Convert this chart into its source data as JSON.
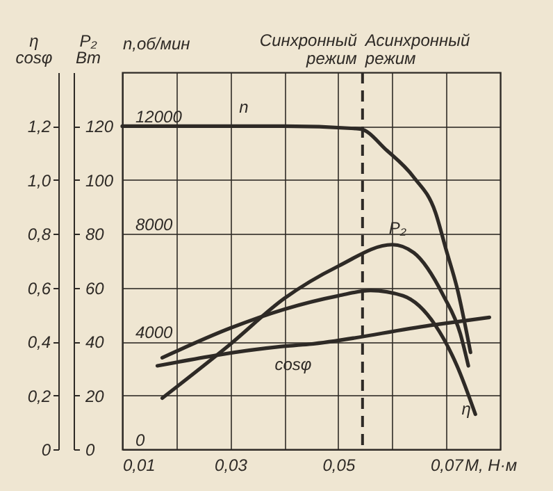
{
  "chart_data": {
    "type": "line",
    "xlabel": "M, Н·м",
    "ylabel": "η cosφ",
    "y2label": "P₂ Вт",
    "y3label": "n,об/мин",
    "xlim": [
      0.01,
      0.08
    ],
    "xticks": [
      {
        "value": 0.01,
        "label": "0,01"
      },
      {
        "value": 0.02,
        "label": null
      },
      {
        "value": 0.03,
        "label": "0,03"
      },
      {
        "value": 0.04,
        "label": null
      },
      {
        "value": 0.05,
        "label": "0,05"
      },
      {
        "value": 0.06,
        "label": null
      },
      {
        "value": 0.07,
        "label": "0,07"
      }
    ],
    "ylim": [
      0,
      1.4
    ],
    "yticks": [
      0,
      {
        "value": 0.2,
        "label": "0,2"
      },
      {
        "value": 0.4,
        "label": "0,4"
      },
      {
        "value": 0.6,
        "label": "0,6"
      },
      {
        "value": 0.8,
        "label": "0,8"
      },
      {
        "value": 1.0,
        "label": "1,0"
      },
      {
        "value": 1.2,
        "label": "1,2"
      }
    ],
    "y2lim": [
      0,
      140
    ],
    "y2ticks": [
      0,
      20,
      40,
      60,
      80,
      100,
      120
    ],
    "y3lim": [
      0,
      14000
    ],
    "y3ticks": [
      0,
      4000,
      8000,
      12000
    ],
    "grid": true,
    "line_style": "solid",
    "series": [
      {
        "name": "n",
        "color": "#2e2a26",
        "axis": "y3",
        "x": [
          0.01,
          0.03,
          0.04,
          0.054,
          0.059,
          0.064,
          0.068,
          0.07,
          0.072,
          0.0745
        ],
        "values": [
          12000,
          12000,
          12000,
          11900,
          11100,
          10100,
          8800,
          7400,
          6000,
          3600
        ]
      },
      {
        "name": "P₂",
        "color": "#2e2a26",
        "axis": "y2",
        "x": [
          0.0174,
          0.03,
          0.04,
          0.05,
          0.06,
          0.064,
          0.0695,
          0.0726,
          0.0741
        ],
        "values": [
          19,
          39,
          56,
          68,
          76,
          73,
          57,
          43,
          31
        ]
      },
      {
        "name": "η",
        "color": "#2e2a26",
        "axis": "y",
        "x": [
          0.0174,
          0.03,
          0.04,
          0.05,
          0.056,
          0.062,
          0.068,
          0.072,
          0.0754
        ],
        "values": [
          0.34,
          0.45,
          0.52,
          0.57,
          0.59,
          0.57,
          0.46,
          0.31,
          0.13
        ]
      },
      {
        "name": "cosφ",
        "color": "#2e2a26",
        "axis": "y",
        "x": [
          0.0165,
          0.0387,
          0.0446,
          0.067,
          0.078
        ],
        "values": [
          0.31,
          0.38,
          0.39,
          0.46,
          0.49
        ]
      }
    ],
    "ref_lines": [
      {
        "axis": "x",
        "value": 0.0545,
        "line_style": "dashed",
        "color": "#2e2a26"
      }
    ],
    "annotations": [
      "Синхронный режим",
      "Асинхронный режим"
    ]
  }
}
